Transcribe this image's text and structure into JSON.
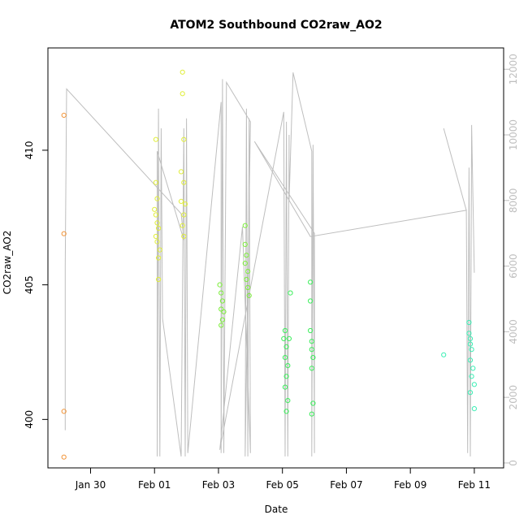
{
  "chart_data": {
    "type": "scatter",
    "title": "ATOM2 Southbound CO2raw_AO2",
    "xlabel": "Date",
    "ylabel": "CO2raw_AO2",
    "xlim": [
      "2017-01-28T16:00",
      "2017-02-11T22:00"
    ],
    "ylim": [
      398.2,
      413.8
    ],
    "y2lim": [
      -150,
      12650
    ],
    "x_ticks": [
      {
        "date": "2017-01-30",
        "label": "Jan 30"
      },
      {
        "date": "2017-02-01",
        "label": "Feb 01"
      },
      {
        "date": "2017-02-03",
        "label": "Feb 03"
      },
      {
        "date": "2017-02-05",
        "label": "Feb 05"
      },
      {
        "date": "2017-02-07",
        "label": "Feb 07"
      },
      {
        "date": "2017-02-09",
        "label": "Feb 09"
      },
      {
        "date": "2017-02-11",
        "label": "Feb 11"
      }
    ],
    "y_ticks": [
      400,
      405,
      410
    ],
    "y2_ticks": [
      0,
      2000,
      4000,
      6000,
      8000,
      10000,
      12000
    ],
    "series": [
      {
        "color": "#f2953a",
        "points": [
          [
            "2017-01-29T04:00",
            411.3
          ],
          [
            "2017-01-29T04:00",
            406.9
          ],
          [
            "2017-01-29T04:00",
            400.3
          ],
          [
            "2017-01-29T04:00",
            398.6
          ]
        ]
      },
      {
        "color": "#e0ee3a",
        "points": [
          [
            "2017-02-01T01:00",
            410.4
          ],
          [
            "2017-02-01T01:00",
            408.8
          ],
          [
            "2017-02-01T02:00",
            408.2
          ],
          [
            "2017-02-01T00:00",
            407.8
          ],
          [
            "2017-02-01T01:00",
            407.6
          ],
          [
            "2017-02-01T02:00",
            407.3
          ],
          [
            "2017-02-01T03:00",
            407.1
          ],
          [
            "2017-02-01T01:00",
            406.8
          ],
          [
            "2017-02-01T02:00",
            406.6
          ],
          [
            "2017-02-01T04:00",
            406.3
          ],
          [
            "2017-02-01T03:00",
            406.0
          ],
          [
            "2017-02-01T03:00",
            405.2
          ],
          [
            "2017-02-01T21:00",
            412.9
          ],
          [
            "2017-02-01T21:00",
            412.1
          ],
          [
            "2017-02-01T22:00",
            410.4
          ],
          [
            "2017-02-01T20:00",
            409.2
          ],
          [
            "2017-02-01T22:00",
            408.8
          ],
          [
            "2017-02-01T20:00",
            408.1
          ],
          [
            "2017-02-01T23:00",
            408.0
          ],
          [
            "2017-02-01T22:00",
            407.6
          ],
          [
            "2017-02-01T21:00",
            407.2
          ],
          [
            "2017-02-01T22:00",
            406.8
          ]
        ]
      },
      {
        "color": "#7cee3a",
        "points": [
          [
            "2017-02-03T01:00",
            405.0
          ],
          [
            "2017-02-03T02:00",
            404.7
          ],
          [
            "2017-02-03T03:00",
            404.4
          ],
          [
            "2017-02-03T02:00",
            404.1
          ],
          [
            "2017-02-03T04:00",
            404.0
          ],
          [
            "2017-02-03T03:00",
            403.7
          ],
          [
            "2017-02-03T02:00",
            403.5
          ],
          [
            "2017-02-03T20:00",
            407.2
          ],
          [
            "2017-02-03T20:00",
            406.5
          ],
          [
            "2017-02-03T21:00",
            406.1
          ],
          [
            "2017-02-03T20:00",
            405.8
          ],
          [
            "2017-02-03T22:00",
            405.5
          ],
          [
            "2017-02-03T21:00",
            405.2
          ],
          [
            "2017-02-03T22:00",
            404.9
          ],
          [
            "2017-02-03T23:00",
            404.6
          ]
        ]
      },
      {
        "color": "#3aee5a",
        "points": [
          [
            "2017-02-05T02:00",
            403.3
          ],
          [
            "2017-02-05T01:00",
            403.0
          ],
          [
            "2017-02-05T03:00",
            402.7
          ],
          [
            "2017-02-05T02:00",
            402.3
          ],
          [
            "2017-02-05T04:00",
            402.0
          ],
          [
            "2017-02-05T03:00",
            401.6
          ],
          [
            "2017-02-05T02:00",
            401.2
          ],
          [
            "2017-02-05T04:00",
            400.7
          ],
          [
            "2017-02-05T03:00",
            400.3
          ],
          [
            "2017-02-05T06:00",
            404.7
          ],
          [
            "2017-02-05T05:00",
            403.0
          ],
          [
            "2017-02-05T21:00",
            405.1
          ],
          [
            "2017-02-05T21:00",
            404.4
          ],
          [
            "2017-02-05T21:00",
            403.3
          ],
          [
            "2017-02-05T22:00",
            402.9
          ],
          [
            "2017-02-05T22:00",
            402.6
          ],
          [
            "2017-02-05T23:00",
            402.3
          ],
          [
            "2017-02-05T22:00",
            401.9
          ],
          [
            "2017-02-05T23:00",
            400.6
          ],
          [
            "2017-02-05T22:00",
            400.2
          ]
        ]
      },
      {
        "color": "#3aeeb4",
        "points": [
          [
            "2017-02-10T01:00",
            402.4
          ],
          [
            "2017-02-10T20:00",
            403.6
          ],
          [
            "2017-02-10T20:00",
            403.2
          ],
          [
            "2017-02-10T21:00",
            403.0
          ],
          [
            "2017-02-10T21:00",
            402.8
          ],
          [
            "2017-02-10T22:00",
            402.6
          ],
          [
            "2017-02-10T21:00",
            402.2
          ],
          [
            "2017-02-10T23:00",
            401.9
          ],
          [
            "2017-02-10T22:00",
            401.6
          ],
          [
            "2017-02-11T00:00",
            401.3
          ],
          [
            "2017-02-10T21:00",
            401.0
          ],
          [
            "2017-02-11T00:00",
            400.4
          ]
        ]
      }
    ],
    "line_series": {
      "axis": "right",
      "color": "#bebebe",
      "points": [
        [
          "2017-01-29T05:00",
          1000
        ],
        [
          "2017-01-29T05:00",
          6000
        ],
        [
          "2017-01-29T06:00",
          11400
        ],
        [
          "2017-02-01T20:00",
          7600
        ],
        [
          "2017-02-01T22:00",
          6800
        ],
        [
          "2017-02-01T02:00",
          9500
        ],
        [
          "2017-02-01T02:00",
          200
        ],
        [
          "2017-02-01T03:00",
          10800
        ],
        [
          "2017-02-01T04:00",
          200
        ],
        [
          "2017-02-01T05:00",
          10200
        ],
        [
          "2017-02-01T06:00",
          4400
        ],
        [
          "2017-02-01T20:00",
          200
        ],
        [
          "2017-02-01T22:00",
          10200
        ],
        [
          "2017-02-01T23:00",
          200
        ],
        [
          "2017-02-02T00:00",
          10500
        ],
        [
          "2017-02-02T01:00",
          300
        ],
        [
          "2017-02-03T02:00",
          11000
        ],
        [
          "2017-02-03T02:00",
          300
        ],
        [
          "2017-02-03T03:00",
          11700
        ],
        [
          "2017-02-03T04:00",
          300
        ],
        [
          "2017-02-03T06:00",
          11600
        ],
        [
          "2017-02-04T00:00",
          10400
        ],
        [
          "2017-02-03T20:00",
          200
        ],
        [
          "2017-02-03T21:00",
          10800
        ],
        [
          "2017-02-03T22:00",
          200
        ],
        [
          "2017-02-03T23:00",
          10500
        ],
        [
          "2017-02-04T00:00",
          300
        ],
        [
          "2017-02-03T18:00",
          7200
        ],
        [
          "2017-02-03T01:00",
          400
        ],
        [
          "2017-02-05T01:00",
          10700
        ],
        [
          "2017-02-05T02:00",
          200
        ],
        [
          "2017-02-05T03:00",
          10400
        ],
        [
          "2017-02-05T04:00",
          200
        ],
        [
          "2017-02-05T05:00",
          10000
        ],
        [
          "2017-02-05T05:00",
          8000
        ],
        [
          "2017-02-05T08:00",
          11900
        ],
        [
          "2017-02-05T22:00",
          9500
        ],
        [
          "2017-02-05T22:00",
          200
        ],
        [
          "2017-02-05T23:00",
          9700
        ],
        [
          "2017-02-06T00:00",
          300
        ],
        [
          "2017-02-06T00:00",
          7000
        ],
        [
          "2017-02-04T03:00",
          9800
        ],
        [
          "2017-02-05T21:00",
          6900
        ],
        [
          "2017-02-10T18:00",
          7700
        ],
        [
          "2017-02-10T19:00",
          300
        ],
        [
          "2017-02-10T20:00",
          9000
        ],
        [
          "2017-02-10T21:00",
          200
        ],
        [
          "2017-02-10T22:00",
          10300
        ],
        [
          "2017-02-11T00:00",
          5800
        ]
      ],
      "extra_segment": [
        [
          "2017-02-10T01:00",
          10200
        ],
        [
          "2017-02-10T18:00",
          7700
        ]
      ]
    }
  }
}
